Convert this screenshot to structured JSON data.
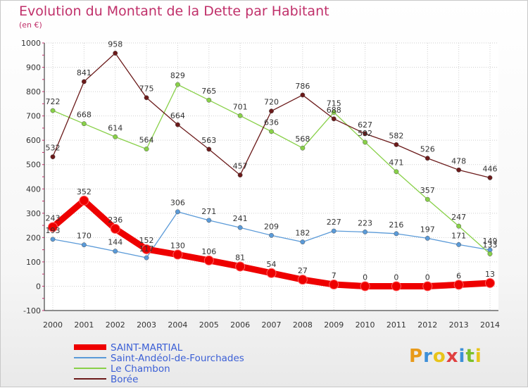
{
  "header": {
    "title": "Evolution du Montant de la Dette par Habitant",
    "subtitle": "(en €)"
  },
  "logo": {
    "text": "Proxiti",
    "colors": [
      "#e89a1a",
      "#3d8fd8",
      "#e8c41a",
      "#e04040",
      "#3d8fd8",
      "#7bbf2a",
      "#e8c41a"
    ]
  },
  "chart_data": {
    "type": "line",
    "title": "Evolution du Montant de la Dette par Habitant",
    "subtitle": "(en €)",
    "x": [
      "2000",
      "2001",
      "2002",
      "2003",
      "2004",
      "2005",
      "2006",
      "2007",
      "2008",
      "2009",
      "2010",
      "2011",
      "2012",
      "2013",
      "2014"
    ],
    "ylim": [
      -100,
      1000
    ],
    "yticks": [
      -100,
      0,
      100,
      200,
      300,
      400,
      500,
      600,
      700,
      800,
      900,
      1000
    ],
    "grid": true,
    "legend_position": "bottom-left",
    "series": [
      {
        "name": "SAINT-MARTIAL",
        "color": "#ee0000",
        "emphasis": true,
        "values": [
          243,
          352,
          236,
          152,
          130,
          106,
          81,
          54,
          27,
          7,
          0,
          0,
          0,
          6,
          13
        ],
        "labels": [
          "243",
          "352",
          "236",
          "152",
          "130",
          "106",
          "81",
          "54",
          "27",
          "7",
          "0",
          "0",
          "0",
          "6",
          "13"
        ]
      },
      {
        "name": "Saint-Andéol-de-Fourchades",
        "color": "#5a9ad8",
        "values": [
          193,
          170,
          144,
          117,
          306,
          271,
          241,
          209,
          182,
          227,
          223,
          216,
          197,
          171,
          149
        ],
        "labels": [
          "193",
          "170",
          "144",
          "117",
          "306",
          "271",
          "241",
          "209",
          "182",
          "227",
          "223",
          "216",
          "197",
          "171",
          "149"
        ]
      },
      {
        "name": "Le Chambon",
        "color": "#88d048",
        "values": [
          722,
          668,
          614,
          564,
          829,
          765,
          701,
          636,
          568,
          715,
          592,
          471,
          357,
          247,
          133
        ],
        "labels": [
          "722",
          "668",
          "614",
          "564",
          "829",
          "765",
          "701",
          "636",
          "568",
          "715",
          "592",
          "471",
          "357",
          "247",
          "133"
        ]
      },
      {
        "name": "Borée",
        "color": "#6b1a1a",
        "values": [
          532,
          841,
          958,
          775,
          664,
          563,
          457,
          720,
          786,
          688,
          627,
          582,
          526,
          478,
          446
        ],
        "labels": [
          "532",
          "841",
          "958",
          "775",
          "664",
          "563",
          "457",
          "720",
          "786",
          "688",
          "627",
          "582",
          "526",
          "478",
          "446"
        ]
      }
    ]
  }
}
